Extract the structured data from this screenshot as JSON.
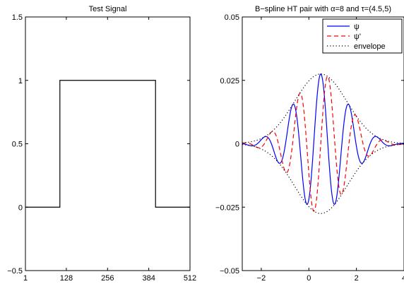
{
  "chart_data": [
    {
      "type": "line",
      "title": "Test Signal",
      "xlabel": "",
      "ylabel": "",
      "xlim": [
        1,
        512
      ],
      "ylim": [
        -0.5,
        1.5
      ],
      "xticks": [
        1,
        128,
        256,
        384,
        512
      ],
      "xtick_labels": [
        "1",
        "128",
        "256",
        "384",
        "512"
      ],
      "yticks": [
        -0.5,
        0,
        0.5,
        1,
        1.5
      ],
      "ytick_labels": [
        "−0.5",
        "0",
        "0.5",
        "1",
        "1.5"
      ],
      "grid": false,
      "series": [
        {
          "color": "#000000",
          "dash": "solid",
          "x": [
            1,
            108,
            108,
            405,
            405,
            512
          ],
          "y": [
            0,
            0,
            1,
            1,
            0,
            0
          ]
        }
      ]
    },
    {
      "type": "line",
      "title": "B−spline HT pair with α=8 and τ=(4.5,5)",
      "xlabel": "",
      "ylabel": "",
      "xlim": [
        -2.8,
        4
      ],
      "ylim": [
        -0.05,
        0.05
      ],
      "xticks": [
        -2,
        0,
        2,
        4
      ],
      "xtick_labels": [
        "−2",
        "0",
        "2",
        "4"
      ],
      "yticks": [
        -0.05,
        -0.025,
        0,
        0.025,
        0.05
      ],
      "ytick_labels": [
        "−0.05",
        "−0.025",
        "0",
        "0.025",
        "0.05"
      ],
      "grid": false,
      "legend_position": "top-right",
      "series": [
        {
          "name": "ψ",
          "color": "#0000ff",
          "dash": "solid",
          "model": "wavelet",
          "params": {
            "center": 0.5,
            "sigma": 1.1,
            "amplitude": 0.0275,
            "omega": 5.3,
            "phase": "cos"
          }
        },
        {
          "name": "ψ'",
          "color": "#ff0000",
          "dash": "dashed",
          "model": "wavelet",
          "params": {
            "center": 0.5,
            "sigma": 1.1,
            "amplitude": 0.0275,
            "omega": 5.3,
            "phase": "sin"
          }
        },
        {
          "name": "envelope",
          "color": "#000000",
          "dash": "dotted",
          "model": "envelope",
          "params": {
            "center": 0.5,
            "sigma": 1.1,
            "amplitude": 0.0275
          }
        }
      ]
    }
  ]
}
